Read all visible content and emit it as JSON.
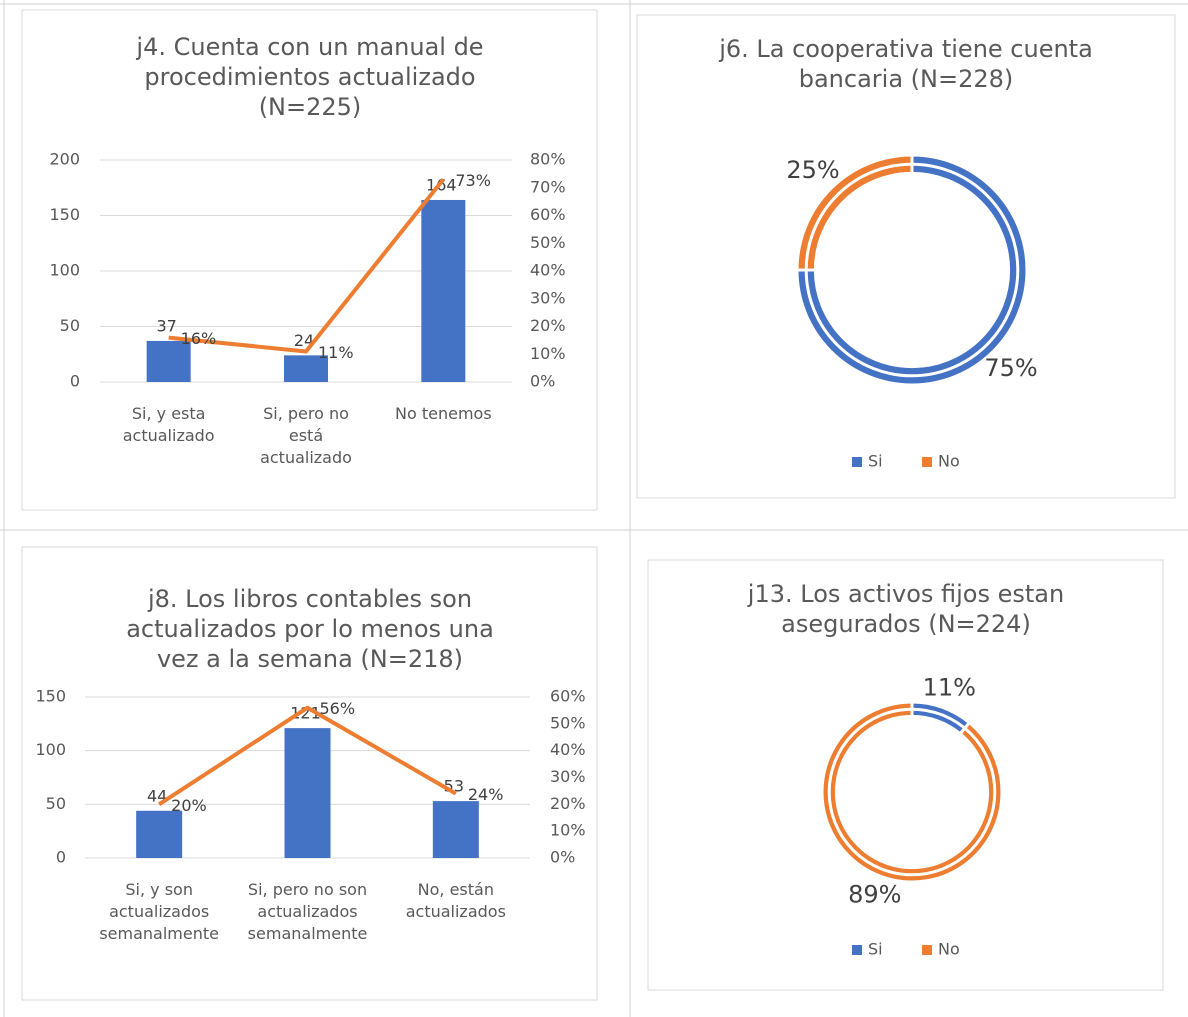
{
  "chart_data": [
    {
      "type": "bar",
      "title": "j4. Cuenta con un manual de procedimientos actualizado (N=225)",
      "categories": [
        "Si, y esta actualizado",
        "Si, pero no está actualizado",
        "No tenemos"
      ],
      "series": [
        {
          "type": "bar",
          "color": "#4472c4",
          "values": [
            37,
            24,
            164
          ]
        },
        {
          "type": "line",
          "axis": "y2",
          "color": "#ed7d31",
          "values": [
            16,
            11,
            73
          ],
          "value_labels": [
            "16%",
            "11%",
            "73%"
          ]
        }
      ],
      "ylim": [
        0,
        200
      ],
      "yticks": [
        0,
        50,
        100,
        150,
        200
      ],
      "y2lim": [
        0,
        80
      ],
      "y2ticks": [
        {
          "value": 0,
          "label": "0%"
        },
        {
          "value": 10,
          "label": "10%"
        },
        {
          "value": 20,
          "label": "20%"
        },
        {
          "value": 30,
          "label": "30%"
        },
        {
          "value": 40,
          "label": "40%"
        },
        {
          "value": 50,
          "label": "50%"
        },
        {
          "value": 60,
          "label": "60%"
        },
        {
          "value": 70,
          "label": "70%"
        },
        {
          "value": 80,
          "label": "80%"
        }
      ],
      "grid": true
    },
    {
      "type": "pie",
      "title": "j6. La cooperativa tiene cuenta bancaria (N=228)",
      "categories": [
        "Si",
        "No"
      ],
      "values": [
        75,
        25
      ],
      "value_labels": [
        "75%",
        "25%"
      ],
      "colors": [
        "#4472c4",
        "#ed7d31"
      ],
      "donut": true,
      "legend": "bottom"
    },
    {
      "type": "bar",
      "title": "j8. Los libros contables son actualizados por lo menos una vez a la semana (N=218)",
      "categories": [
        "Si, y son actualizados semanalmente",
        "Si, pero no son actualizados semanalmente",
        "No, están actualizados"
      ],
      "series": [
        {
          "type": "bar",
          "color": "#4472c4",
          "values": [
            44,
            121,
            53
          ]
        },
        {
          "type": "line",
          "axis": "y2",
          "color": "#ed7d31",
          "values": [
            20,
            56,
            24
          ],
          "value_labels": [
            "20%",
            "56%",
            "24%"
          ]
        }
      ],
      "ylim": [
        0,
        150
      ],
      "yticks": [
        0,
        50,
        100,
        150
      ],
      "y2lim": [
        0,
        60
      ],
      "y2ticks": [
        {
          "value": 0,
          "label": "0%"
        },
        {
          "value": 10,
          "label": "10%"
        },
        {
          "value": 20,
          "label": "20%"
        },
        {
          "value": 30,
          "label": "30%"
        },
        {
          "value": 40,
          "label": "40%"
        },
        {
          "value": 50,
          "label": "50%"
        },
        {
          "value": 60,
          "label": "60%"
        }
      ],
      "grid": true
    },
    {
      "type": "pie",
      "title": "j13. Los activos fijos estan asegurados (N=224)",
      "categories": [
        "Si",
        "No"
      ],
      "values": [
        11,
        89
      ],
      "value_labels": [
        "11%",
        "89%"
      ],
      "colors": [
        "#4472c4",
        "#ed7d31"
      ],
      "donut": true,
      "legend": "bottom"
    }
  ]
}
